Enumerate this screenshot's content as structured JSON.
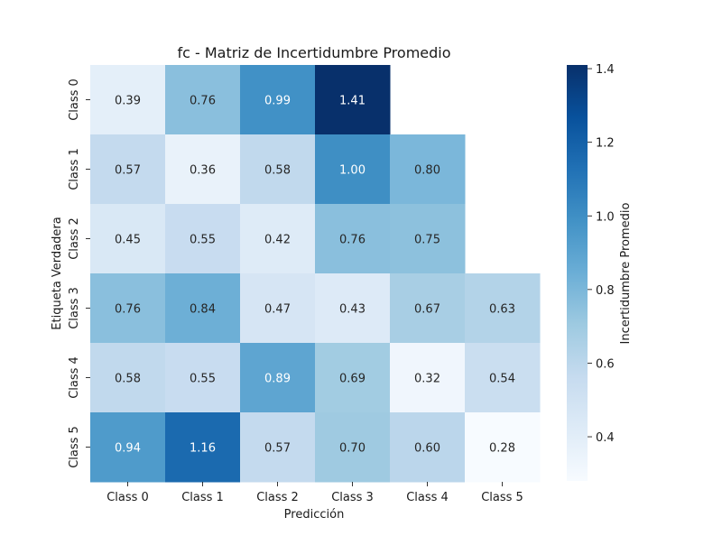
{
  "chart_data": {
    "type": "heatmap",
    "title": "fc - Matriz de Incertidumbre Promedio",
    "xlabel": "Predicción",
    "ylabel": "Etiqueta Verdadera",
    "x_categories": [
      "Class 0",
      "Class 1",
      "Class 2",
      "Class 3",
      "Class 4",
      "Class 5"
    ],
    "y_categories": [
      "Class 0",
      "Class 1",
      "Class 2",
      "Class 3",
      "Class 4",
      "Class 5"
    ],
    "values": [
      [
        0.39,
        0.76,
        0.99,
        1.41,
        null,
        null
      ],
      [
        0.57,
        0.36,
        0.58,
        1.0,
        0.8,
        null
      ],
      [
        0.45,
        0.55,
        0.42,
        0.76,
        0.75,
        null
      ],
      [
        0.76,
        0.84,
        0.47,
        0.43,
        0.67,
        0.63
      ],
      [
        0.58,
        0.55,
        0.89,
        0.69,
        0.32,
        0.54
      ],
      [
        0.94,
        1.16,
        0.57,
        0.7,
        0.6,
        0.28
      ]
    ],
    "colorbar": {
      "label": "Incertidumbre Promedio",
      "vmin": 0.28,
      "vmax": 1.41,
      "ticks": [
        0.4,
        0.6,
        0.8,
        1.0,
        1.2,
        1.4
      ],
      "tick_labels": [
        "0.4",
        "0.6",
        "0.8",
        "1.0",
        "1.2",
        "1.4"
      ]
    },
    "colormap": "Blues",
    "grid": false
  }
}
